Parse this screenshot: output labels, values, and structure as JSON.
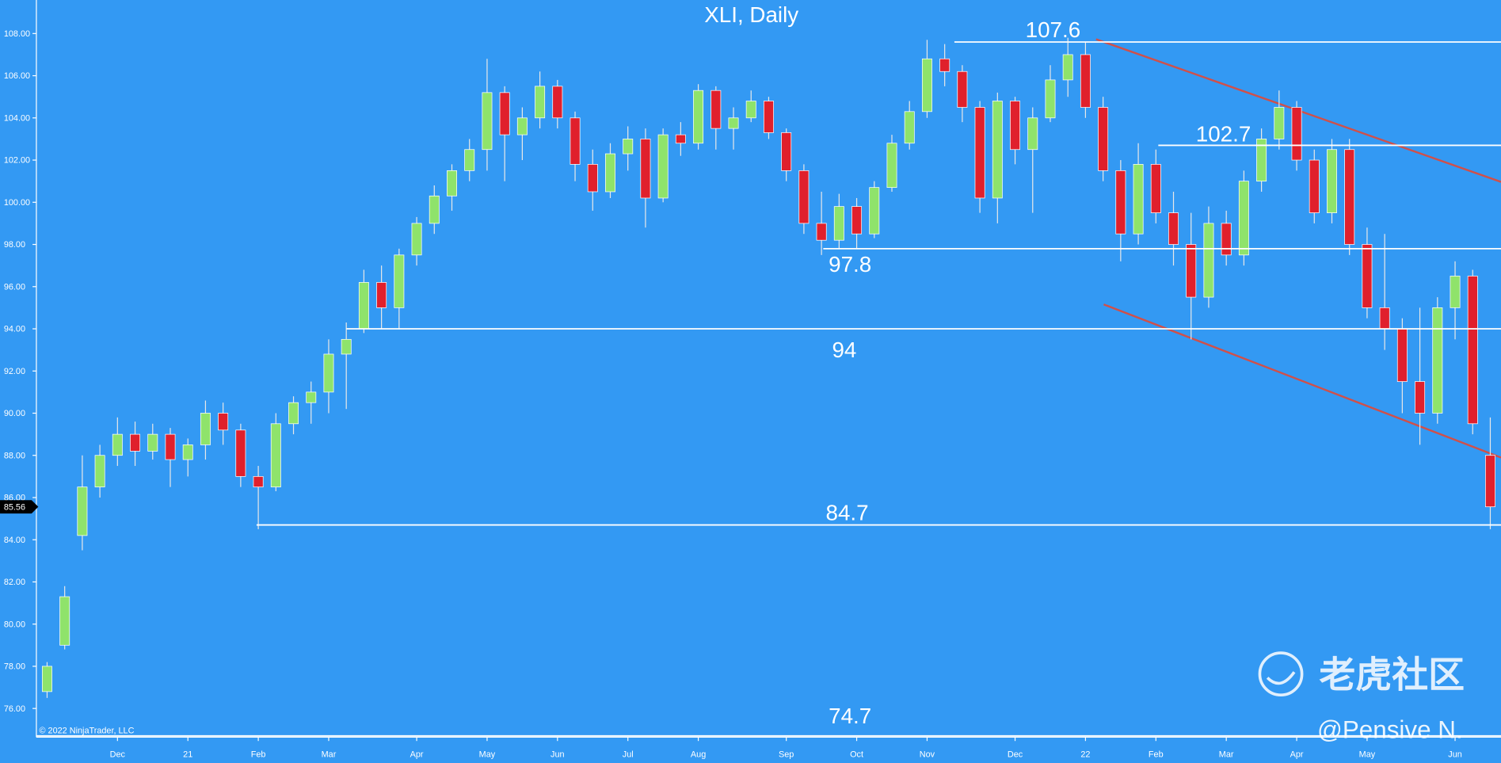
{
  "chart_data": {
    "type": "candlestick",
    "title": "XLI, Daily",
    "categories": [
      null,
      null,
      null,
      null,
      "Dec",
      null,
      null,
      null,
      "21",
      null,
      null,
      null,
      "Feb",
      null,
      null,
      null,
      "Mar",
      null,
      null,
      null,
      null,
      "Apr",
      null,
      null,
      null,
      "May",
      null,
      null,
      null,
      "Jun",
      null,
      null,
      null,
      "Jul",
      null,
      null,
      null,
      "Aug",
      null,
      null,
      null,
      null,
      "Sep",
      null,
      null,
      null,
      "Oct",
      null,
      null,
      null,
      "Nov",
      null,
      null,
      null,
      null,
      "Dec",
      null,
      null,
      null,
      "22",
      null,
      null,
      null,
      "Feb",
      null,
      null,
      null,
      "Mar",
      null,
      null,
      null,
      "Apr",
      null,
      null,
      null,
      "May",
      null,
      null,
      null,
      null,
      "Jun",
      null,
      null
    ],
    "open": [
      76.8,
      79,
      84.2,
      86.5,
      88,
      89,
      88.2,
      89,
      87.8,
      88.5,
      90,
      89.2,
      87,
      86.5,
      89.5,
      90.5,
      91,
      92.8,
      94,
      96.2,
      95,
      97.5,
      99,
      100.3,
      101.5,
      102.5,
      105.2,
      103.2,
      104,
      105.5,
      104,
      101.8,
      100.5,
      102.3,
      103,
      100.2,
      103.2,
      102.8,
      105.3,
      103.5,
      104,
      104.8,
      103.3,
      101.5,
      99,
      98.2,
      99.8,
      98.5,
      100.7,
      102.8,
      104.3,
      106.8,
      106.2,
      104.5,
      100.2,
      104.8,
      102.5,
      104,
      105.8,
      107,
      104.5,
      101.5,
      98.5,
      101.8,
      99.5,
      98,
      95.5,
      99,
      97.5,
      101,
      103,
      104.5,
      102,
      99.5,
      102.5,
      98,
      95,
      94,
      91.5,
      90,
      95,
      96.5,
      88
    ],
    "high": [
      78.2,
      81.8,
      88,
      88.5,
      89.8,
      89.6,
      89.5,
      89.3,
      88.8,
      90.6,
      90.5,
      89.5,
      87.5,
      90,
      90.8,
      91.5,
      93.5,
      94.3,
      96.8,
      97,
      97.8,
      99.3,
      100.8,
      101.8,
      103,
      106.8,
      105.5,
      104.5,
      106.2,
      105.8,
      104.3,
      102.5,
      102.8,
      103.6,
      103.5,
      103.5,
      103.8,
      105.6,
      105.5,
      104.5,
      105.3,
      105,
      103.5,
      101.8,
      100.5,
      100.4,
      100.2,
      101,
      103.2,
      104.8,
      107.7,
      107.5,
      106.5,
      104.8,
      105.2,
      105,
      104.5,
      106.5,
      107.8,
      107.6,
      105,
      102,
      102.8,
      102.5,
      100.5,
      99.5,
      99.8,
      99.6,
      101.5,
      103.5,
      105.3,
      104.8,
      102.5,
      103,
      103,
      98.8,
      98.5,
      94.5,
      95,
      95.5,
      97.2,
      96.8,
      89.8
    ],
    "low": [
      76.5,
      78.8,
      83.5,
      86,
      87.5,
      87.5,
      87.8,
      86.5,
      87,
      87.8,
      88.5,
      86.5,
      84.5,
      86.3,
      89,
      89.5,
      90,
      90.2,
      93.8,
      94,
      94,
      97,
      98.5,
      99.6,
      101,
      101.5,
      101,
      102,
      103.5,
      103.5,
      101,
      99.6,
      100.2,
      101.5,
      98.8,
      100,
      102.2,
      102.5,
      102.5,
      102.5,
      103.8,
      103,
      101,
      98.5,
      97.5,
      97.8,
      97.8,
      98.3,
      100.5,
      102.5,
      104,
      105.5,
      103.8,
      99.5,
      99,
      101.8,
      99.5,
      103.8,
      105,
      104,
      101,
      97.2,
      98,
      99,
      97,
      93.5,
      95,
      97,
      97,
      100.5,
      102.5,
      101.5,
      99,
      99,
      97.5,
      94.5,
      93,
      90,
      88.5,
      89.5,
      93.5,
      89,
      84.5
    ],
    "close": [
      78,
      81.3,
      86.5,
      88,
      89,
      88.2,
      89,
      87.8,
      88.5,
      90,
      89.2,
      87,
      86.5,
      89.5,
      90.5,
      91,
      92.8,
      93.5,
      96.2,
      95,
      97.5,
      99,
      100.3,
      101.5,
      102.5,
      105.2,
      103.2,
      104,
      105.5,
      104,
      101.8,
      100.5,
      102.3,
      103,
      100.2,
      103.2,
      102.8,
      105.3,
      103.5,
      104,
      104.8,
      103.3,
      101.5,
      99,
      98.2,
      99.8,
      98.5,
      100.7,
      102.8,
      104.3,
      106.8,
      106.2,
      104.5,
      100.2,
      104.8,
      102.5,
      104,
      105.8,
      107,
      104.5,
      101.5,
      98.5,
      101.8,
      99.5,
      98,
      95.5,
      99,
      97.5,
      101,
      103,
      104.5,
      102,
      99.5,
      102.5,
      98,
      95,
      94,
      91.5,
      90,
      95,
      96.5,
      89.5,
      85.56
    ],
    "up_color": "#8fe36b",
    "down_color": "#e0202c",
    "ylim": [
      74.64,
      109.59
    ],
    "yticks": [
      {
        "value": 76,
        "label": "76.00"
      },
      {
        "value": 78,
        "label": "78.00"
      },
      {
        "value": 80,
        "label": "80.00"
      },
      {
        "value": 82,
        "label": "82.00"
      },
      {
        "value": 84,
        "label": "84.00"
      },
      {
        "value": 86,
        "label": "86.00"
      },
      {
        "value": 88,
        "label": "88.00"
      },
      {
        "value": 90,
        "label": "90.00"
      },
      {
        "value": 92,
        "label": "92.00"
      },
      {
        "value": 94,
        "label": "94.00"
      },
      {
        "value": 96,
        "label": "96.00"
      },
      {
        "value": 98,
        "label": "98.00"
      },
      {
        "value": 100,
        "label": "100.00"
      },
      {
        "value": 102,
        "label": "102.00"
      },
      {
        "value": 104,
        "label": "104.00"
      },
      {
        "value": 106,
        "label": "106.00"
      },
      {
        "value": 108,
        "label": "108.00"
      }
    ],
    "levels": [
      107.6,
      102.7,
      97.8,
      94,
      84.7,
      74.7
    ],
    "last_price": 85.56,
    "copyright": "© 2022 NinjaTrader, LLC",
    "watermark": "老虎社区",
    "author": "@Pensive N."
  }
}
